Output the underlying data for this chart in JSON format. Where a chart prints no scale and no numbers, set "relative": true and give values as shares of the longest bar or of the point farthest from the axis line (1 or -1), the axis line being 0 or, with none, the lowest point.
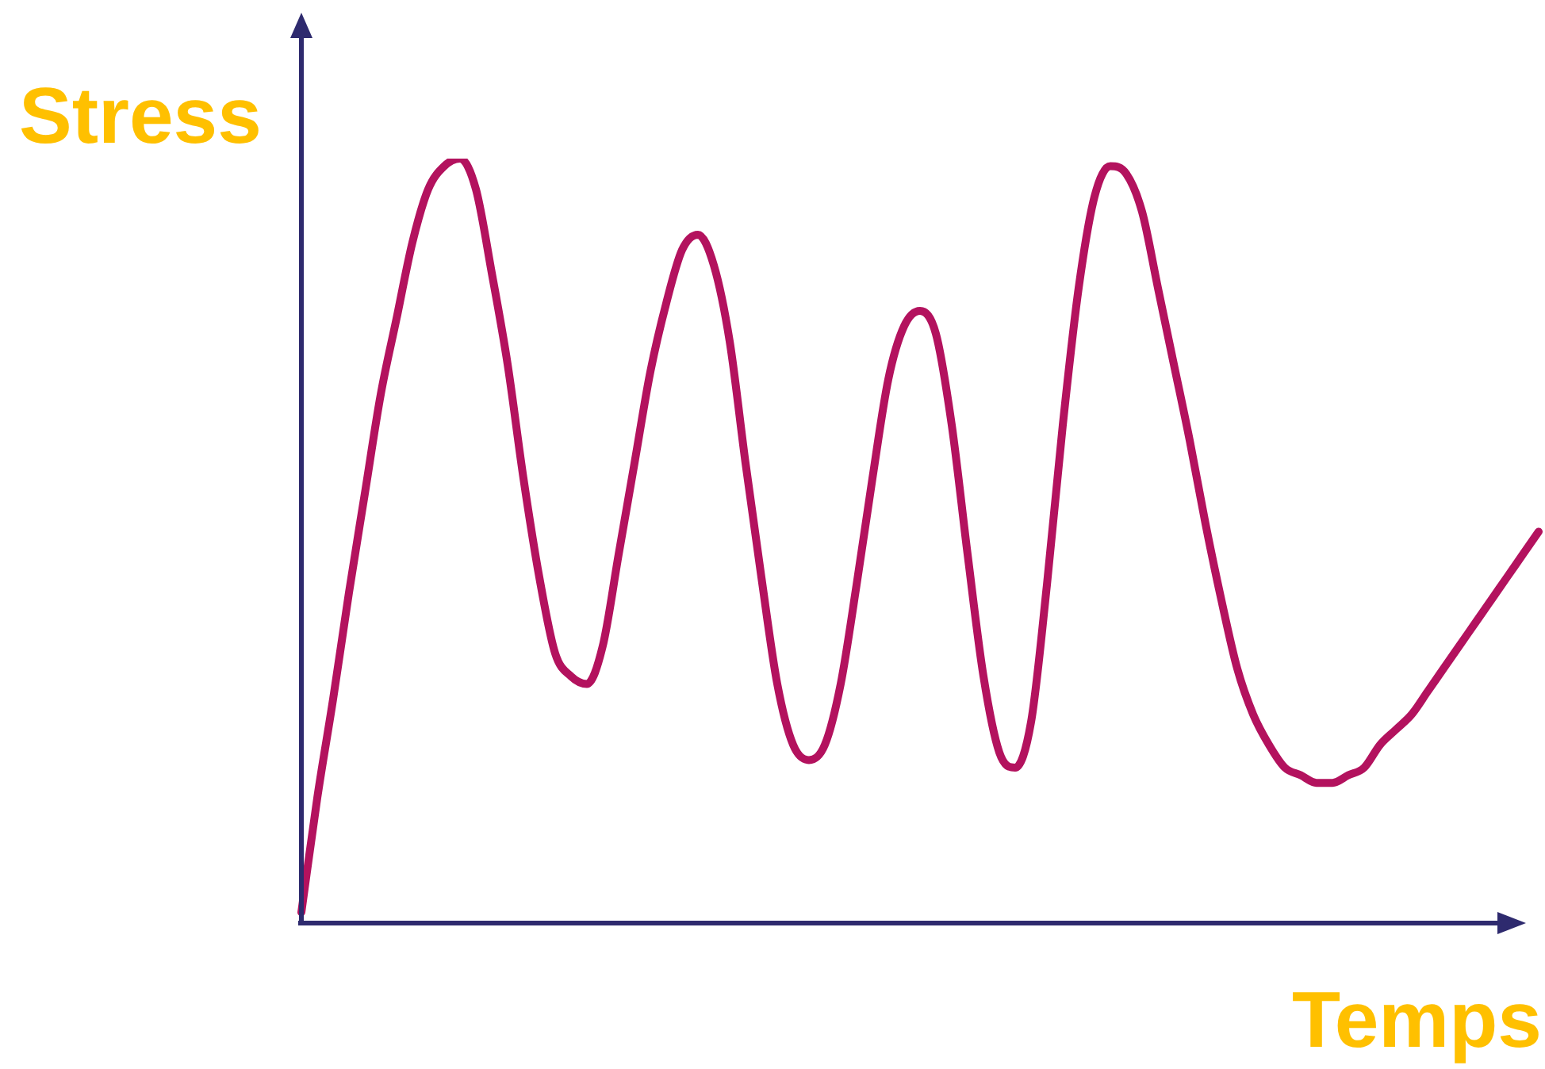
{
  "chart_data": {
    "type": "line",
    "relative": true,
    "ylabel": "Stress",
    "xlabel": "Temps",
    "color": "#b3125e",
    "marker": "none",
    "line_style": "solid",
    "categories": [
      null,
      null,
      null,
      null,
      null,
      null,
      null,
      null,
      null,
      null,
      null,
      null,
      null,
      null,
      null,
      null,
      null,
      null,
      null,
      null,
      null,
      null,
      null,
      null,
      null,
      null,
      null,
      null,
      null,
      null,
      null,
      null,
      null,
      null,
      null,
      null,
      null,
      null,
      null,
      null,
      null,
      null,
      null,
      null,
      null,
      null,
      null,
      null,
      null,
      null,
      null,
      null,
      null,
      null,
      null,
      null,
      null,
      null,
      null,
      null,
      null,
      null,
      null,
      null,
      null,
      null,
      null,
      null,
      null,
      null,
      null,
      null,
      null,
      null,
      null,
      null,
      null,
      null,
      null
    ],
    "values": [
      0.01,
      0.16,
      0.29,
      0.43,
      0.56,
      0.69,
      0.79,
      0.89,
      0.96,
      0.99,
      1,
      0.96,
      0.85,
      0.73,
      0.58,
      0.45,
      0.35,
      0.32,
      0.31,
      0.36,
      0.48,
      0.6,
      0.72,
      0.81,
      0.88,
      0.9,
      0.86,
      0.76,
      0.6,
      0.45,
      0.31,
      0.23,
      0.21,
      0.23,
      0.31,
      0.44,
      0.58,
      0.71,
      0.78,
      0.8,
      0.77,
      0.65,
      0.48,
      0.32,
      0.22,
      0.2,
      0.26,
      0.44,
      0.65,
      0.83,
      0.95,
      0.99,
      0.98,
      0.93,
      0.83,
      0.73,
      0.63,
      0.52,
      0.42,
      0.33,
      0.27,
      0.23,
      0.2,
      0.19,
      0.18,
      0.18,
      0.19,
      0.2,
      0.23,
      0.25,
      0.27,
      0.3,
      0.33,
      0.36,
      0.39,
      0.42,
      0.45,
      0.48,
      0.51
    ]
  }
}
